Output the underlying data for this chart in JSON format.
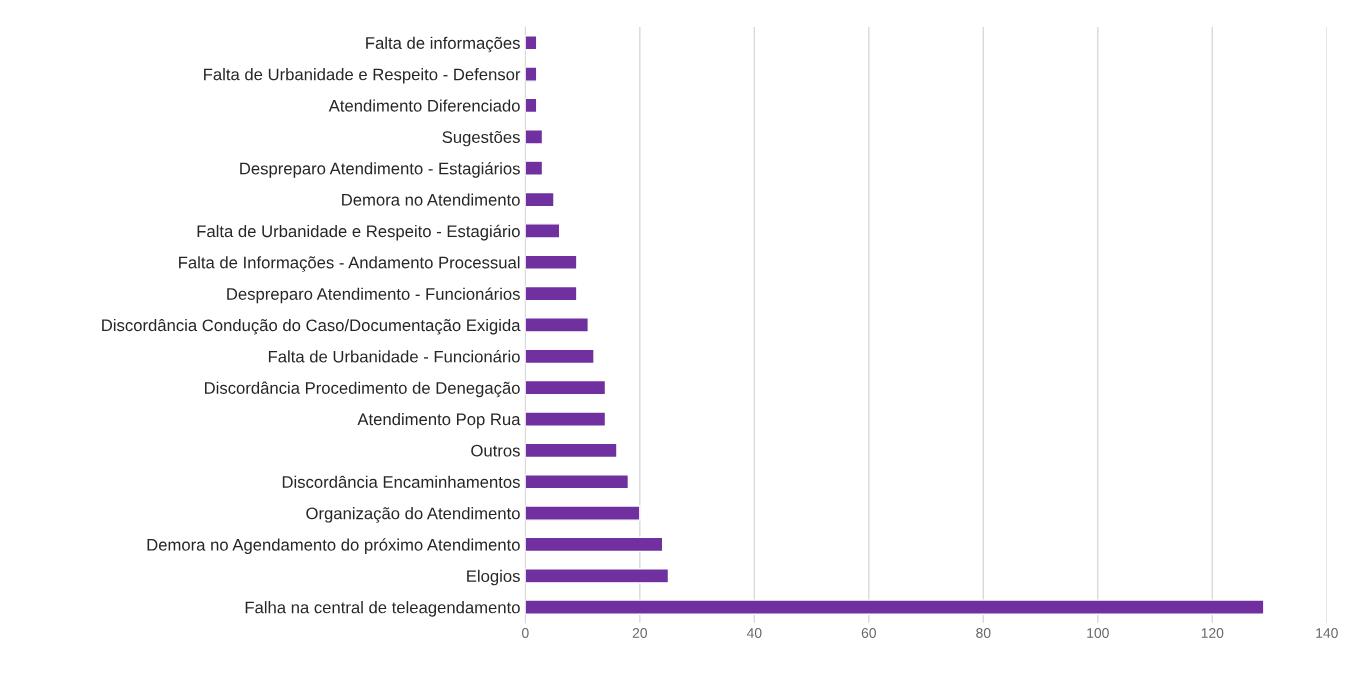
{
  "chart_data": {
    "type": "bar",
    "orientation": "horizontal",
    "categories": [
      "Falta de informações",
      "Falta de Urbanidade e Respeito - Defensor",
      "Atendimento Diferenciado",
      "Sugestões",
      "Despreparo Atendimento - Estagiários",
      "Demora no Atendimento",
      "Falta de Urbanidade e Respeito - Estagiário",
      "Falta de Informações - Andamento Processual",
      "Despreparo Atendimento - Funcionários",
      "Discordância Condução do Caso/Documentação Exigida",
      "Falta de Urbanidade - Funcionário",
      "Discordância Procedimento de Denegação",
      "Atendimento Pop Rua",
      "Outros",
      "Discordância Encaminhamentos",
      "Organização do Atendimento",
      "Demora no Agendamento do próximo Atendimento",
      "Elogios",
      "Falha na central de teleagendamento"
    ],
    "values": [
      2,
      2,
      2,
      3,
      3,
      5,
      6,
      9,
      9,
      11,
      12,
      14,
      14,
      16,
      18,
      20,
      24,
      25,
      129
    ],
    "color": "#7030a0",
    "xlim": [
      0,
      140
    ],
    "xticks": [
      0,
      20,
      40,
      60,
      80,
      100,
      120,
      140
    ],
    "grid": "x"
  }
}
